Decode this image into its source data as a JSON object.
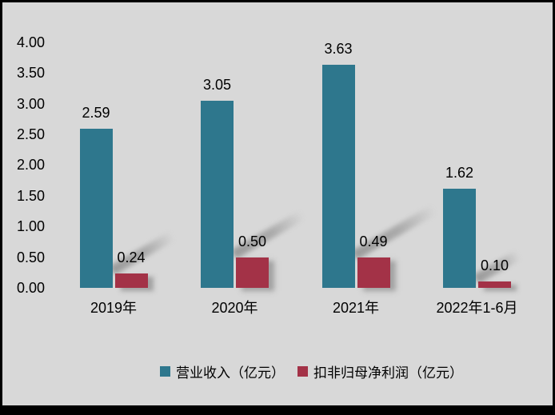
{
  "window": {
    "background": "#D8D8D8",
    "frame_color": "#000000"
  },
  "chart_data": {
    "type": "bar",
    "title": "",
    "categories": [
      "2019年",
      "2020年",
      "2021年",
      "2022年1-6月"
    ],
    "series": [
      {
        "name": "营业收入（亿元）",
        "color": "#2E778D",
        "values": [
          2.59,
          3.05,
          3.63,
          1.62
        ],
        "value_labels": [
          "2.59",
          "3.05",
          "3.63",
          "1.62"
        ]
      },
      {
        "name": "扣非归母净利润（亿元）",
        "color": "#A33247",
        "values": [
          0.24,
          0.5,
          0.49,
          0.1
        ],
        "value_labels": [
          "0.24",
          "0.50",
          "0.49",
          "0.10"
        ]
      }
    ],
    "xlabel": "",
    "ylabel": "",
    "ylim": [
      0,
      4
    ],
    "ytick_step": 0.5,
    "ytick_labels": [
      "0.00",
      "0.50",
      "1.00",
      "1.50",
      "2.00",
      "2.50",
      "3.00",
      "3.50",
      "4.00"
    ],
    "grid": false,
    "axis_lines": false,
    "legend_position": "bottom",
    "text_color": "#000000",
    "shadow_style": "perspective-upper-right"
  }
}
